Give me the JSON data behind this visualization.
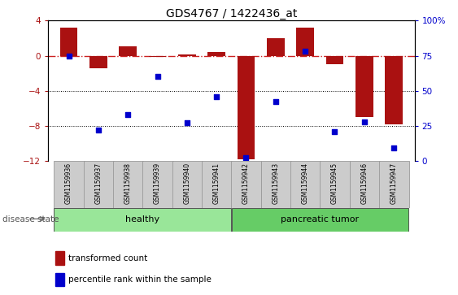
{
  "title": "GDS4767 / 1422436_at",
  "samples": [
    "GSM1159936",
    "GSM1159937",
    "GSM1159938",
    "GSM1159939",
    "GSM1159940",
    "GSM1159941",
    "GSM1159942",
    "GSM1159943",
    "GSM1159944",
    "GSM1159945",
    "GSM1159946",
    "GSM1159947"
  ],
  "transformed_count": [
    3.2,
    -1.4,
    1.1,
    -0.15,
    0.15,
    0.4,
    -11.8,
    2.0,
    3.2,
    -1.0,
    -7.0,
    -7.8
  ],
  "percentile_rank": [
    75,
    22,
    33,
    60,
    27,
    46,
    2,
    42,
    78,
    21,
    28,
    9
  ],
  "bar_color": "#aa1111",
  "dot_color": "#0000cc",
  "dashed_line_color": "#cc2222",
  "background_color": "#ffffff",
  "ylim_left": [
    -12,
    4
  ],
  "ylim_right": [
    0,
    100
  ],
  "right_yticks": [
    0,
    25,
    50,
    75,
    100
  ],
  "right_yticklabels": [
    "0",
    "25",
    "50",
    "75",
    "100%"
  ],
  "left_yticks": [
    -12,
    -8,
    -4,
    0,
    4
  ],
  "healthy_color": "#99e699",
  "tumor_color": "#66cc66",
  "label_box_color": "#cccccc",
  "legend_bar_label": "transformed count",
  "legend_dot_label": "percentile rank within the sample",
  "disease_state_label": "disease state",
  "n_healthy": 6,
  "n_tumor": 6
}
